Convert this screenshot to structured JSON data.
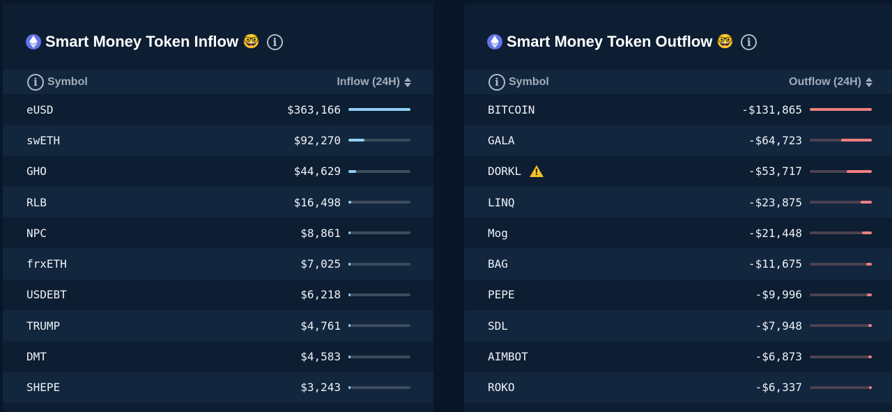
{
  "colors": {
    "inflow_bar": "#8fd0f7",
    "outflow_bar": "#ef7f7f",
    "panel_bg": "#0d1d32",
    "header_bg": "#12263e"
  },
  "inflow": {
    "title": "Smart Money Token Inflow",
    "chain_icon": "ethereum-icon",
    "title_emoji": "🤓",
    "header": {
      "symbol": "Symbol",
      "value": "Inflow (24H)"
    },
    "rows": [
      {
        "symbol": "eUSD",
        "value": "$363,166",
        "fraction": 1.0
      },
      {
        "symbol": "swETH",
        "value": "$92,270",
        "fraction": 0.254
      },
      {
        "symbol": "GHO",
        "value": "$44,629",
        "fraction": 0.123
      },
      {
        "symbol": "RLB",
        "value": "$16,498",
        "fraction": 0.045
      },
      {
        "symbol": "NPC",
        "value": "$8,861",
        "fraction": 0.024
      },
      {
        "symbol": "frxETH",
        "value": "$7,025",
        "fraction": 0.019
      },
      {
        "symbol": "USDEBT",
        "value": "$6,218",
        "fraction": 0.017
      },
      {
        "symbol": "TRUMP",
        "value": "$4,761",
        "fraction": 0.013
      },
      {
        "symbol": "DMT",
        "value": "$4,583",
        "fraction": 0.013
      },
      {
        "symbol": "SHEPE",
        "value": "$3,243",
        "fraction": 0.009
      }
    ]
  },
  "outflow": {
    "title": "Smart Money Token Outflow",
    "chain_icon": "ethereum-icon",
    "title_emoji": "🤓",
    "header": {
      "symbol": "Symbol",
      "value": "Outflow (24H)"
    },
    "rows": [
      {
        "symbol": "BITCOIN",
        "value": "-$131,865",
        "fraction": 1.0
      },
      {
        "symbol": "GALA",
        "value": "-$64,723",
        "fraction": 0.491
      },
      {
        "symbol": "DORKL",
        "value": "-$53,717",
        "fraction": 0.407,
        "warning": true
      },
      {
        "symbol": "LINQ",
        "value": "-$23,875",
        "fraction": 0.181
      },
      {
        "symbol": "Mog",
        "value": "-$21,448",
        "fraction": 0.163
      },
      {
        "symbol": "BAG",
        "value": "-$11,675",
        "fraction": 0.089
      },
      {
        "symbol": "PEPE",
        "value": "-$9,996",
        "fraction": 0.076
      },
      {
        "symbol": "SDL",
        "value": "-$7,948",
        "fraction": 0.06
      },
      {
        "symbol": "AIMBOT",
        "value": "-$6,873",
        "fraction": 0.052
      },
      {
        "symbol": "ROKO",
        "value": "-$6,337",
        "fraction": 0.048
      }
    ]
  }
}
